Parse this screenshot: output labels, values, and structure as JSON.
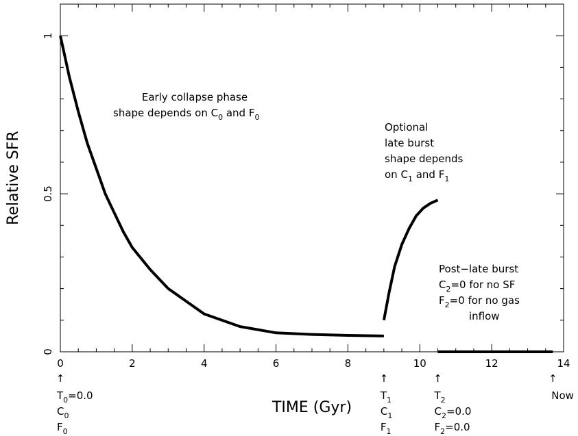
{
  "chart_data": {
    "type": "line",
    "xlabel": "TIME (Gyr)",
    "ylabel": "Relative SFR",
    "xlim": [
      0,
      14
    ],
    "ylim": [
      0,
      1.1
    ],
    "x_ticks": [
      "0",
      "2",
      "4",
      "6",
      "8",
      "10",
      "12",
      "14"
    ],
    "y_ticks": [
      "0",
      "0.5",
      "1"
    ],
    "grid": false,
    "series": [
      {
        "segment": "early-collapse",
        "x": [
          0,
          0.25,
          0.5,
          0.75,
          1.0,
          1.25,
          1.5,
          1.75,
          2.0,
          2.5,
          3.0,
          3.5,
          4.0,
          5.0,
          6.0,
          7.0,
          8.0,
          9.0
        ],
        "y": [
          1.0,
          0.87,
          0.76,
          0.66,
          0.58,
          0.5,
          0.44,
          0.38,
          0.33,
          0.26,
          0.2,
          0.16,
          0.12,
          0.08,
          0.06,
          0.055,
          0.052,
          0.05
        ]
      },
      {
        "segment": "late-burst",
        "x": [
          9.0,
          9.15,
          9.3,
          9.5,
          9.7,
          9.9,
          10.1,
          10.3,
          10.5
        ],
        "y": [
          0.1,
          0.19,
          0.27,
          0.34,
          0.39,
          0.43,
          0.455,
          0.47,
          0.48
        ]
      },
      {
        "segment": "post-late-burst",
        "x": [
          10.5,
          13.7
        ],
        "y": [
          0.0,
          0.0
        ]
      }
    ],
    "annotations": {
      "early_phase": {
        "line1": "Early collapse phase",
        "line2_prefix": "shape depends on C",
        "line2_mid": " and F",
        "sub": "0"
      },
      "late_burst": {
        "line1": "Optional",
        "line2": "late burst",
        "line3": "shape depends",
        "line4_prefix": "on C",
        "line4_mid": " and F",
        "sub": "1"
      },
      "post_burst": {
        "line1": "Post−late burst",
        "line2_prefix": "C",
        "line2_suffix": "=0 for no SF",
        "line3_prefix": "F",
        "line3_suffix": "=0 for no gas",
        "line4": "inflow",
        "sub": "2"
      }
    },
    "markers": [
      {
        "x": 0,
        "lines": [
          {
            "base": "T",
            "sub": "0",
            "rest": "=0.0"
          },
          {
            "base": "C",
            "sub": "0",
            "rest": ""
          },
          {
            "base": "F",
            "sub": "0",
            "rest": ""
          }
        ]
      },
      {
        "x": 9.0,
        "lines": [
          {
            "base": "T",
            "sub": "1",
            "rest": ""
          },
          {
            "base": "C",
            "sub": "1",
            "rest": ""
          },
          {
            "base": "F",
            "sub": "1",
            "rest": ""
          }
        ]
      },
      {
        "x": 10.5,
        "lines": [
          {
            "base": "T",
            "sub": "2",
            "rest": ""
          },
          {
            "base": "C",
            "sub": "2",
            "rest": "=0.0"
          },
          {
            "base": "F",
            "sub": "2",
            "rest": "=0.0"
          }
        ]
      },
      {
        "x": 13.7,
        "lines": [
          {
            "base": "Now",
            "sub": "",
            "rest": ""
          }
        ]
      }
    ],
    "arrow_glyph": "↑"
  }
}
